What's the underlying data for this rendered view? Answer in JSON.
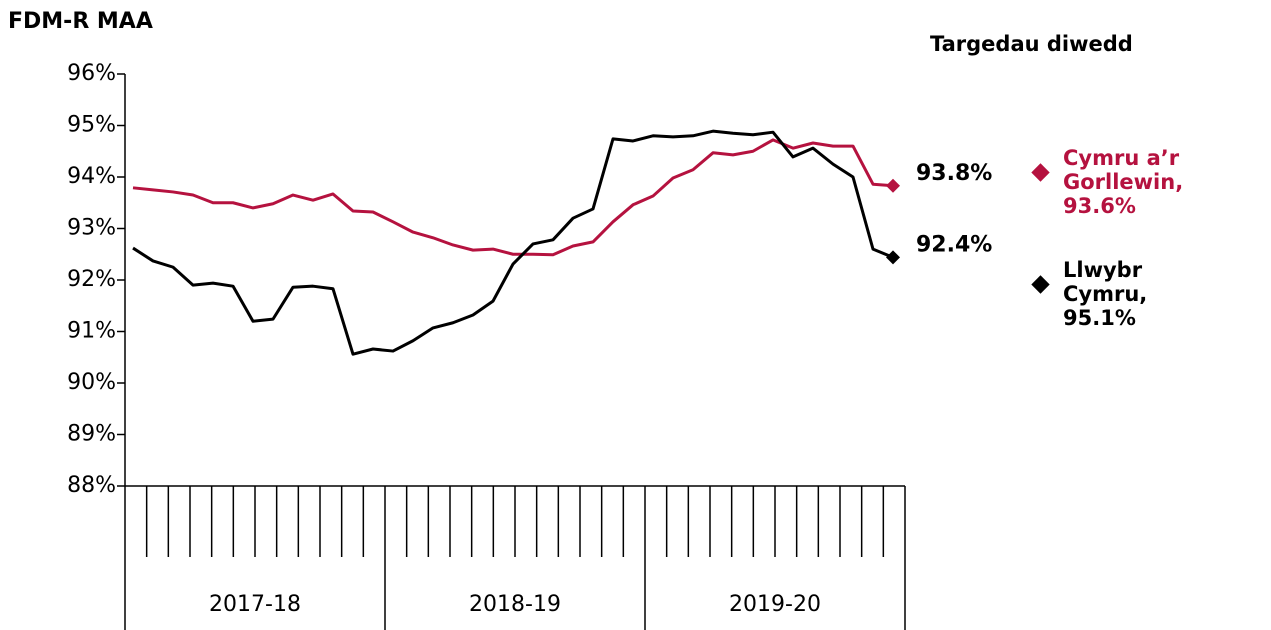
{
  "chart_data": {
    "type": "line",
    "ylabel": "FDM-R MAA",
    "legend_title": "Targedau diwedd",
    "categories": [
      null,
      null,
      null,
      null,
      null,
      null,
      null,
      null,
      null,
      null,
      null,
      null,
      null,
      null,
      null,
      null,
      null,
      null,
      null,
      null,
      null,
      null,
      null,
      null,
      null,
      null,
      null,
      null,
      null,
      null,
      null,
      null,
      null,
      null,
      null,
      null,
      null,
      null,
      null
    ],
    "groups": [
      "2017-18",
      "2018-19",
      "2019-20"
    ],
    "ylim": [
      88,
      96
    ],
    "yticks": [
      {
        "value": 88,
        "label": "88%"
      },
      {
        "value": 89,
        "label": "89%"
      },
      {
        "value": 90,
        "label": "90%"
      },
      {
        "value": 91,
        "label": "91%"
      },
      {
        "value": 92,
        "label": "92%"
      },
      {
        "value": 93,
        "label": "93%"
      },
      {
        "value": 94,
        "label": "94%"
      },
      {
        "value": 95,
        "label": "95%"
      },
      {
        "value": 96,
        "label": "96%"
      }
    ],
    "series": [
      {
        "name": "Cymru a’r Gorllewin, 93.6%",
        "color": "#b5123f",
        "values": [
          93.79,
          93.75,
          93.71,
          93.65,
          93.5,
          93.5,
          93.4,
          93.48,
          93.65,
          93.55,
          93.67,
          93.34,
          93.32,
          93.13,
          92.93,
          92.82,
          92.68,
          92.58,
          92.6,
          92.5,
          92.5,
          92.49,
          92.66,
          92.74,
          93.13,
          93.46,
          93.63,
          93.98,
          94.14,
          94.47,
          94.43,
          94.5,
          94.72,
          94.56,
          94.66,
          94.6,
          94.6,
          93.86,
          93.83
        ],
        "end_label": "93.8%"
      },
      {
        "name": "Llwybr Cymru, 95.1%",
        "color": "#000000",
        "values": [
          92.62,
          92.37,
          92.25,
          91.9,
          91.94,
          91.88,
          91.2,
          91.24,
          91.86,
          91.88,
          91.83,
          90.56,
          90.66,
          90.62,
          90.82,
          91.07,
          91.17,
          91.32,
          91.59,
          92.31,
          92.7,
          92.78,
          93.2,
          93.38,
          94.74,
          94.7,
          94.8,
          94.78,
          94.8,
          94.89,
          94.85,
          94.82,
          94.87,
          94.39,
          94.56,
          94.25,
          94.0,
          92.6,
          92.44
        ],
        "end_label": "92.4%"
      }
    ]
  }
}
